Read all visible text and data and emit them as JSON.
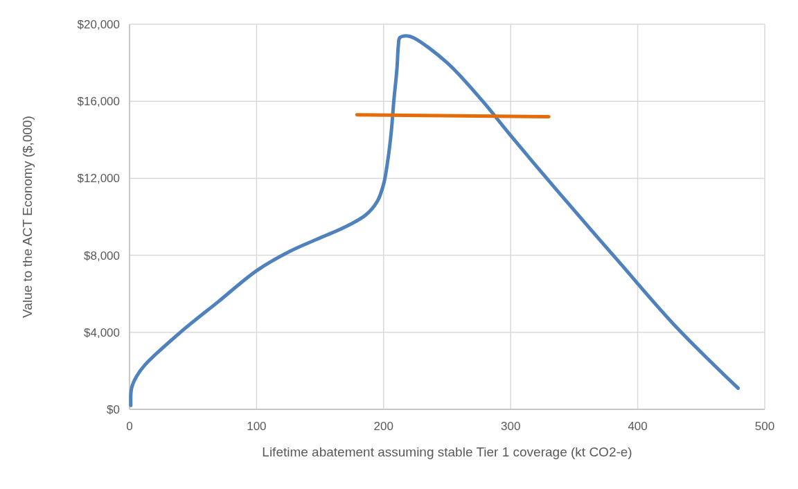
{
  "chart_data": {
    "type": "line",
    "xlabel": "Lifetime abatement assuming stable Tier 1 coverage (kt CO2-e)",
    "ylabel": "Value to the ACT Economy ($,000)",
    "xlim": [
      0,
      500
    ],
    "xticks": [
      0,
      100,
      200,
      300,
      400,
      500
    ],
    "ylim": [
      0,
      20000
    ],
    "yticks": [
      {
        "value": 0,
        "label": "$0"
      },
      {
        "value": 4000,
        "label": "$4,000"
      },
      {
        "value": 8000,
        "label": "$8,000"
      },
      {
        "value": 12000,
        "label": "$12,000"
      },
      {
        "value": 16000,
        "label": "$16,000"
      },
      {
        "value": 20000,
        "label": "$20,000"
      }
    ],
    "grid": true,
    "marker": "none",
    "line_style": "solid",
    "series": [
      {
        "color": "#4f81bd",
        "x": [
          1,
          1.6,
          5.4,
          12,
          40,
          70,
          100,
          126,
          148,
          169,
          186,
          195,
          200,
          203,
          206,
          208,
          210.5,
          211.6,
          212.7,
          218,
          223.5,
          250,
          278,
          299,
          340,
          386,
          430,
          479
        ],
        "values": [
          200,
          1100,
          1700,
          2300,
          4000,
          5600,
          7200,
          8200,
          8850,
          9450,
          10100,
          10800,
          11700,
          12800,
          14400,
          16000,
          17700,
          18900,
          19300,
          19400,
          19300,
          18000,
          16000,
          14300,
          11100,
          7600,
          4300,
          1100
        ]
      },
      {
        "color": "#e46c0a",
        "x": [
          179,
          330
        ],
        "values": [
          15300,
          15200
        ]
      }
    ]
  }
}
